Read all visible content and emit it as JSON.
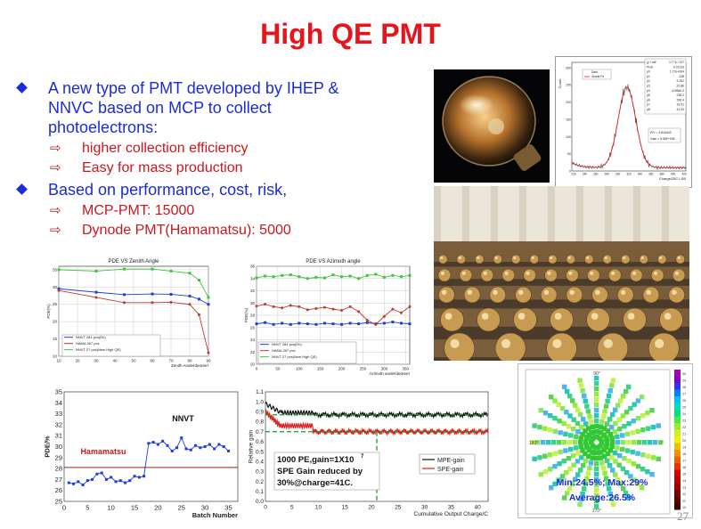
{
  "slide": {
    "title": "High QE PMT",
    "page_number": "27"
  },
  "bullets": [
    {
      "text": "A new type of PMT developed by IHEP & NNVC based on MCP to collect photoelectrons:",
      "lines": [
        "A new type of PMT developed by IHEP &",
        "NNVC based on MCP to collect",
        "photoelectrons:"
      ],
      "sub": [
        "higher collection efficiency",
        "Easy for mass production"
      ]
    },
    {
      "text": "Based on performance, cost, risk,",
      "lines": [
        "Based on performance, cost, risk,"
      ],
      "sub": [
        "MCP-PMT: 15000",
        "Dynode PMT(Hamamatsu): 5000"
      ]
    }
  ],
  "colors": {
    "title": "#e8141b",
    "bullet": "#1b2bdc",
    "sub": "#c8191e"
  },
  "photos": {
    "pmt_bulb": "glass-bulb-photo",
    "factory": "pmt-test-hall-photo"
  },
  "charts": [
    {
      "id": "spe-spectrum",
      "type": "histogram",
      "xlabel": "Charge/25C LSB",
      "ylabel": "Count",
      "legend": [
        "Data",
        "Global Fit"
      ],
      "fit_table": [
        [
          "χ² / ndf",
          "177.6 / 137"
        ],
        [
          "Prob",
          "0.01133"
        ],
        [
          "p0",
          "1.77e+004"
        ],
        [
          "p1",
          "238"
        ],
        [
          "p2",
          "3.262"
        ],
        [
          "p3",
          "22.86"
        ],
        [
          "p4",
          "-6.996e-2"
        ],
        [
          "p5",
          "238.2"
        ],
        [
          "p6",
          "296.4"
        ],
        [
          "p7",
          "19.51"
        ],
        [
          "p8",
          "41.00"
        ]
      ],
      "box_lines": [
        "P/V = 4.816443",
        "Gain = 8.56E+006"
      ],
      "x_ticks": [
        "220",
        "240",
        "260",
        "280",
        "300",
        "320",
        "340",
        "360",
        "380",
        "400",
        "420"
      ],
      "y_ticks": [
        "0",
        "50",
        "100",
        "150",
        "200",
        "250",
        "300"
      ]
    },
    {
      "id": "pde-zenith",
      "type": "line",
      "title": "PDE VS Zenith Angle",
      "xlabel": "Zenith Angle(degree)",
      "ylabel": "PDE(%)",
      "xlim": [
        10,
        90
      ],
      "ylim": [
        10,
        36
      ],
      "x_ticks": [
        "10",
        "20",
        "30",
        "40",
        "50",
        "60",
        "70",
        "80",
        "90"
      ],
      "y_ticks": [
        "10",
        "15",
        "20",
        "25",
        "30",
        "35"
      ],
      "series": [
        {
          "name": "NNVT 284 pcs(Dh)",
          "color": "#1e3fd6",
          "x": [
            10,
            30,
            45,
            60,
            70,
            80,
            85,
            90
          ],
          "y": [
            29.5,
            28.5,
            27.8,
            28,
            27.9,
            27.4,
            26.5,
            25
          ]
        },
        {
          "name": "HAMA 267 pcs",
          "color": "#c0392b",
          "x": [
            10,
            30,
            45,
            60,
            70,
            80,
            85,
            90
          ],
          "y": [
            29,
            27,
            25.5,
            25.5,
            25.6,
            25,
            22,
            11
          ]
        },
        {
          "name": "NNVT 27 pcs(New High QE)",
          "color": "#3ec43e",
          "x": [
            10,
            30,
            45,
            60,
            70,
            80,
            85,
            90
          ],
          "y": [
            35,
            34.6,
            35.2,
            35.2,
            34.6,
            34,
            32,
            27
          ]
        }
      ]
    },
    {
      "id": "pde-azimuth",
      "type": "line",
      "title": "PDE VS Azimuth angle",
      "xlabel": "Azimuth angle(degree)",
      "ylabel": "PDE(%)",
      "xlim": [
        0,
        360
      ],
      "ylim": [
        20,
        36
      ],
      "x_ticks": [
        "0",
        "50",
        "100",
        "150",
        "200",
        "250",
        "300",
        "350"
      ],
      "y_ticks": [
        "20",
        "22",
        "24",
        "26",
        "28",
        "30",
        "32",
        "34",
        "36"
      ],
      "series": [
        {
          "name": "NNVT 284 pcs(Dh)",
          "color": "#1e3fd6",
          "x": [
            0,
            20,
            40,
            60,
            80,
            100,
            120,
            140,
            160,
            180,
            200,
            220,
            240,
            260,
            280,
            300,
            320,
            340,
            360
          ],
          "y": [
            26.6,
            26.8,
            26.5,
            26.7,
            26.5,
            26.7,
            26.6,
            26.5,
            26.7,
            26.6,
            26.5,
            26.7,
            26.6,
            26.8,
            26.6,
            26.7,
            26.9,
            26.7,
            26.6
          ]
        },
        {
          "name": "HAMA 267 pcs",
          "color": "#c0392b",
          "x": [
            0,
            20,
            40,
            60,
            80,
            100,
            120,
            140,
            160,
            180,
            200,
            220,
            240,
            260,
            280,
            300,
            320,
            340,
            360
          ],
          "y": [
            29.5,
            29.8,
            29.4,
            29.2,
            29.6,
            29.4,
            28.9,
            29.1,
            29.3,
            29.0,
            28.8,
            29.4,
            28.6,
            27.2,
            26.5,
            27.8,
            29.0,
            28.4,
            29.4
          ]
        },
        {
          "name": "NNVT 27 pcs(New High QE)",
          "color": "#3ec43e",
          "x": [
            0,
            20,
            40,
            60,
            80,
            100,
            120,
            140,
            160,
            180,
            200,
            220,
            240,
            260,
            280,
            300,
            320,
            340,
            360
          ],
          "y": [
            34.1,
            34.4,
            34.3,
            34.5,
            34.6,
            34.3,
            34.0,
            34.2,
            34.1,
            34.6,
            34.3,
            34.4,
            34.0,
            34.5,
            34.7,
            34.2,
            34.5,
            34.3,
            34.5
          ]
        }
      ]
    },
    {
      "id": "pde-batch",
      "type": "line",
      "xlabel": "Batch Number",
      "ylabel": "PDE/%",
      "xlim": [
        0,
        37
      ],
      "ylim": [
        25,
        35
      ],
      "x_ticks": [
        "0",
        "5",
        "10",
        "15",
        "20",
        "25",
        "30",
        "35"
      ],
      "y_ticks": [
        "25",
        "26",
        "27",
        "28",
        "29",
        "30",
        "31",
        "32",
        "33",
        "34",
        "35"
      ],
      "hamamatsu_level": 28.1,
      "labels": [
        "NNVT",
        "Hamamatsu"
      ],
      "x": [
        1,
        2,
        3,
        4,
        5,
        6,
        7,
        8,
        9,
        10,
        11,
        12,
        13,
        14,
        15,
        16,
        17,
        18,
        19,
        20,
        21,
        22,
        23,
        24,
        25,
        26,
        27,
        28,
        29,
        30,
        31,
        32,
        33,
        34,
        35
      ],
      "y": [
        26.7,
        26.6,
        26.8,
        26.5,
        26.9,
        27.0,
        27.5,
        27.6,
        27.0,
        27.2,
        26.8,
        26.9,
        26.7,
        26.9,
        27.3,
        27.2,
        27.3,
        30.3,
        30.4,
        30.2,
        30.5,
        30.1,
        29.6,
        29.9,
        30.8,
        29.8,
        29.7,
        30.1,
        29.9,
        30.0,
        30.2,
        29.8,
        30.2,
        30.0,
        29.6
      ]
    },
    {
      "id": "relative-gain",
      "type": "line",
      "xlabel": "Cumulative Output Charge/C",
      "ylabel": "Relative gain",
      "xlim": [
        0,
        42
      ],
      "ylim": [
        0,
        1.1
      ],
      "x_ticks": [
        "0",
        "5",
        "10",
        "15",
        "20",
        "25",
        "30",
        "35",
        "40"
      ],
      "y_ticks": [
        "0.0",
        "0.1",
        "0.2",
        "0.3",
        "0.4",
        "0.5",
        "0.6",
        "0.7",
        "0.8",
        "0.9",
        "1.0",
        "1.1"
      ],
      "legend": [
        "MPE-gain",
        "SPE-gain"
      ],
      "annotation_lines": [
        "1000 PE,gain=1X10",
        "SPE Gain reduced by",
        "30%@charge=41C."
      ],
      "annotation_sup": "7",
      "mpe_level": 0.87,
      "spe_level": 0.7,
      "marker_x": 21
    },
    {
      "id": "qe-map",
      "type": "heatmap",
      "angle_labels": [
        "90°",
        "180°",
        "0°",
        "270°"
      ],
      "min_max": "Min:24.5%; Max:29%",
      "average": "Average:26.5%",
      "scale_ticks": [
        "30",
        "29",
        "28",
        "27",
        "26",
        "25",
        "24",
        "23",
        "22",
        "21",
        "20",
        "19",
        "18",
        "17",
        "16",
        "15",
        "14",
        "13",
        "12",
        "11",
        "10"
      ]
    }
  ]
}
